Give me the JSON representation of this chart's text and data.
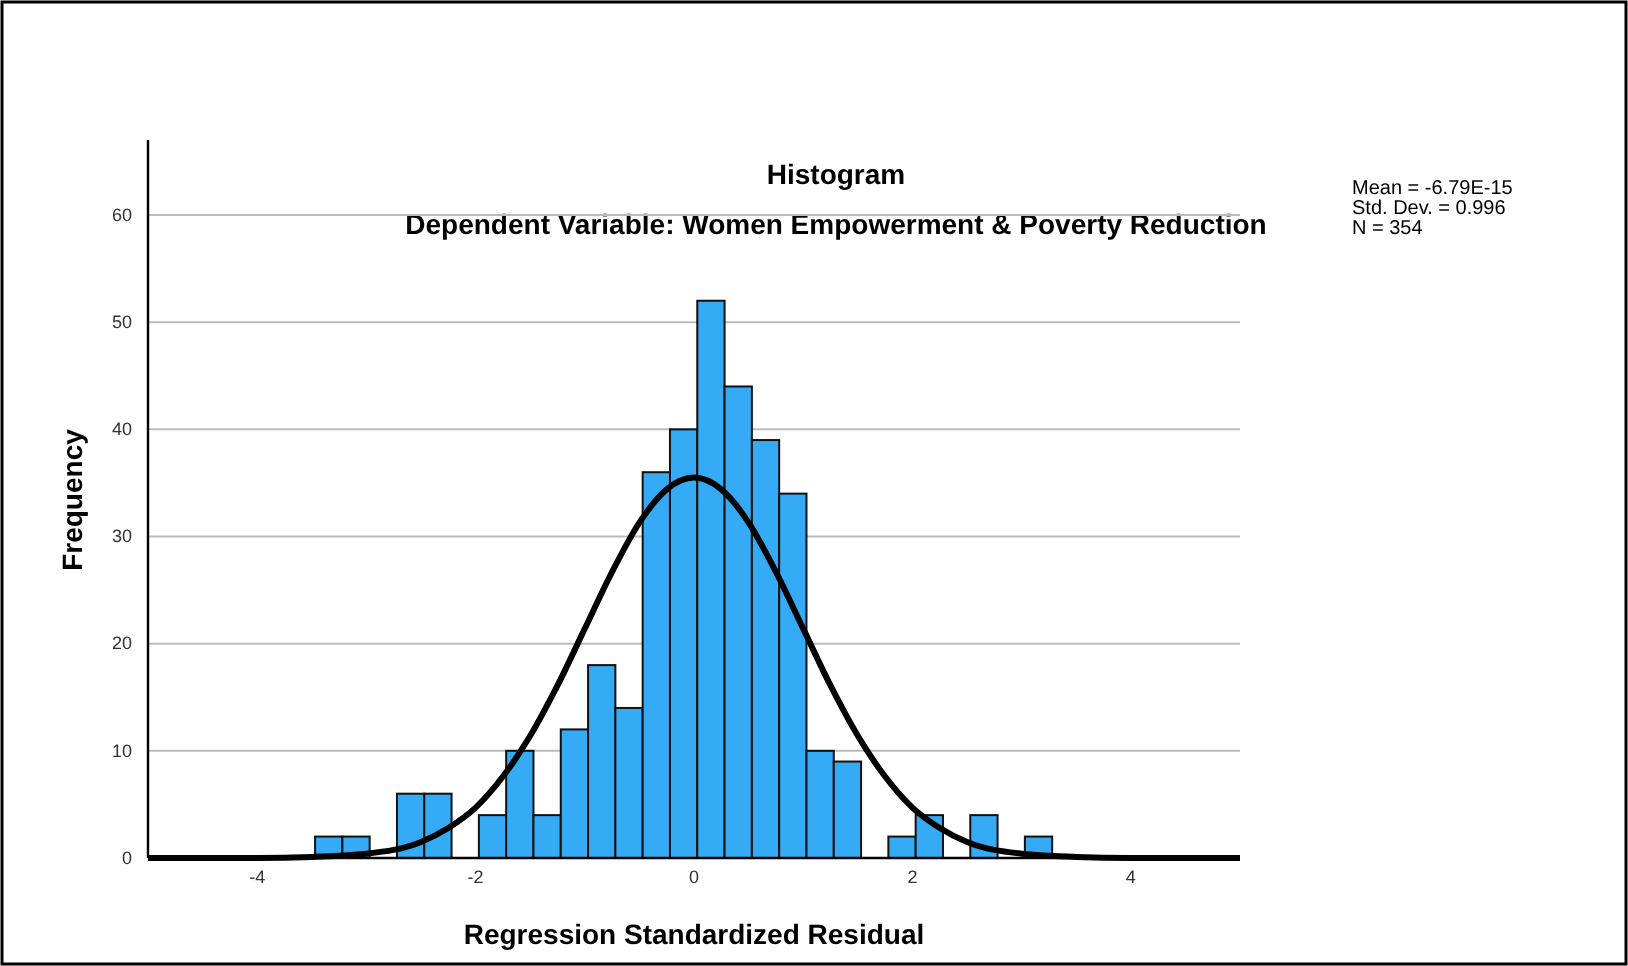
{
  "chart_data": {
    "type": "histogram",
    "title": "Histogram",
    "subtitle": "Dependent Variable: Women Empowerment & Poverty Reduction",
    "xlabel": "Regression Standardized Residual",
    "ylabel": "Frequency",
    "xlim": [
      -5,
      5
    ],
    "xticks": [
      -4,
      -2,
      0,
      2,
      4
    ],
    "ylim": [
      0,
      67
    ],
    "yticks": [
      0,
      10,
      20,
      30,
      40,
      50,
      60
    ],
    "grid": "y",
    "annotations": [
      "Mean = -6.79E-15",
      "Std. Dev. = 0.996",
      "N = 354"
    ],
    "series": [
      {
        "color": "#35aaf5",
        "bins": [
          -3.47,
          -3.22,
          -2.97,
          -2.72,
          -2.47,
          -2.22,
          -1.97,
          -1.72,
          -1.47,
          -1.22,
          -0.97,
          -0.72,
          -0.47,
          -0.22,
          0.03,
          0.28,
          0.53,
          0.78,
          1.03,
          1.28,
          1.53,
          1.78,
          2.03,
          2.28,
          2.53,
          2.78,
          3.03,
          3.28
        ],
        "values": [
          2,
          2,
          0,
          6,
          6,
          0,
          4,
          10,
          4,
          12,
          18,
          14,
          36,
          40,
          52,
          44,
          39,
          34,
          10,
          9,
          0,
          2,
          4,
          0,
          4,
          0,
          2
        ]
      },
      {
        "type": "line",
        "color": "#000000",
        "x": [
          -5,
          -4,
          -3.5,
          -3,
          -2.5,
          -2.25,
          -2,
          -1.75,
          -1.5,
          -1.25,
          -1,
          -0.75,
          -0.5,
          -0.25,
          0,
          0.25,
          0.5,
          0.75,
          1,
          1.25,
          1.5,
          1.75,
          2,
          2.25,
          2.5,
          3,
          3.5,
          4,
          5
        ],
        "values": [
          0,
          0,
          0.1,
          0.4,
          1.5,
          2.8,
          4.7,
          7.6,
          11.4,
          16.1,
          21.4,
          26.7,
          31.3,
          34.4,
          35.5,
          34.4,
          31.3,
          26.7,
          21.4,
          16.1,
          11.4,
          7.6,
          4.7,
          2.8,
          1.5,
          0.4,
          0.1,
          0,
          0
        ]
      }
    ]
  }
}
